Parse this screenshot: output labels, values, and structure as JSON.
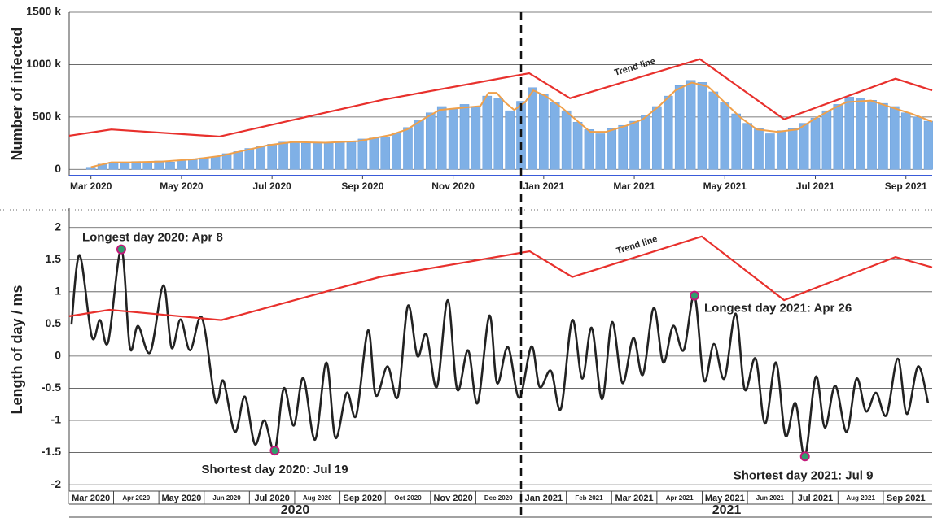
{
  "chart_data": [
    {
      "type": "bar",
      "ylabel": "Number of infected",
      "color": "#7fb0e6",
      "xlim": [
        -0.48,
        18.58
      ],
      "ylim": [
        -60000,
        1500000
      ],
      "yticks": [
        {
          "value": 0,
          "label": "0"
        },
        {
          "value": 500000,
          "label": "500 k"
        },
        {
          "value": 1000000,
          "label": "1000 k"
        },
        {
          "value": 1500000,
          "label": "1500 k"
        }
      ],
      "xticks": [
        {
          "value": 0,
          "label": "Mar 2020"
        },
        {
          "value": 2,
          "label": "May 2020"
        },
        {
          "value": 4,
          "label": "Jul 2020"
        },
        {
          "value": 6,
          "label": "Sep 2020"
        },
        {
          "value": 8,
          "label": "Nov 2020"
        },
        {
          "value": 10,
          "label": "Jan 2021"
        },
        {
          "value": 12,
          "label": "Mar 2021"
        },
        {
          "value": 14,
          "label": "May 2021"
        },
        {
          "value": 16,
          "label": "Jul 2021"
        },
        {
          "value": 18,
          "label": "Sep 2021"
        }
      ],
      "x": [
        0,
        0.25,
        0.5,
        0.75,
        1,
        1.25,
        1.5,
        1.75,
        2,
        2.25,
        2.5,
        2.75,
        3,
        3.25,
        3.5,
        3.75,
        4,
        4.25,
        4.5,
        4.75,
        5,
        5.25,
        5.5,
        5.75,
        6,
        6.25,
        6.5,
        6.75,
        7,
        7.25,
        7.5,
        7.75,
        8,
        8.25,
        8.5,
        8.75,
        9,
        9.25,
        9.5,
        9.75,
        10,
        10.25,
        10.5,
        10.75,
        11,
        11.25,
        11.5,
        11.75,
        12,
        12.25,
        12.5,
        12.75,
        13,
        13.25,
        13.5,
        13.75,
        14,
        14.25,
        14.5,
        14.75,
        15,
        15.25,
        15.5,
        15.75,
        16,
        16.25,
        16.5,
        16.75,
        17,
        17.25,
        17.5,
        17.75,
        18,
        18.25,
        18.5
      ],
      "values": [
        20000,
        50000,
        70000,
        60000,
        75000,
        65000,
        80000,
        70000,
        90000,
        100000,
        110000,
        120000,
        150000,
        170000,
        200000,
        220000,
        240000,
        260000,
        270000,
        250000,
        260000,
        250000,
        270000,
        265000,
        290000,
        300000,
        310000,
        350000,
        400000,
        470000,
        540000,
        600000,
        580000,
        620000,
        600000,
        700000,
        680000,
        560000,
        650000,
        780000,
        720000,
        640000,
        560000,
        450000,
        380000,
        340000,
        390000,
        420000,
        460000,
        520000,
        600000,
        700000,
        800000,
        850000,
        830000,
        740000,
        640000,
        530000,
        440000,
        390000,
        340000,
        370000,
        390000,
        440000,
        490000,
        560000,
        620000,
        690000,
        680000,
        660000,
        630000,
        600000,
        540000,
        500000,
        460000
      ],
      "moving_average": {
        "color": "#f0a04a",
        "x": [
          0,
          0.45,
          0.86,
          1.58,
          2.3,
          2.84,
          3.38,
          3.92,
          4.46,
          5.18,
          5.9,
          6.62,
          6.98,
          7.34,
          7.7,
          8.06,
          8.6,
          8.78,
          8.96,
          9.14,
          9.35,
          9.59,
          9.77,
          10.04,
          10.4,
          10.76,
          11.03,
          11.38,
          11.83,
          12.19,
          12.55,
          12.91,
          13.27,
          13.63,
          13.99,
          14.35,
          14.71,
          15.16,
          15.61,
          15.97,
          16.33,
          16.69,
          17.23,
          17.59,
          18.13,
          18.58
        ],
        "values": [
          22000,
          67000,
          67000,
          75000,
          97000,
          127000,
          179000,
          231000,
          261000,
          254000,
          269000,
          328000,
          381000,
          478000,
          567000,
          582000,
          604000,
          731000,
          731000,
          642000,
          567000,
          642000,
          754000,
          701000,
          590000,
          455000,
          358000,
          358000,
          418000,
          478000,
          604000,
          754000,
          828000,
          791000,
          642000,
          493000,
          381000,
          358000,
          381000,
          478000,
          567000,
          642000,
          657000,
          604000,
          530000,
          455000
        ]
      },
      "trend_line": {
        "label": "Trend line",
        "color": "#e8302c",
        "x": [
          -0.48,
          0.45,
          2.84,
          6.44,
          9.68,
          10.58,
          13.45,
          15.31,
          17.77,
          18.58
        ],
        "values": [
          321000,
          381000,
          313000,
          664000,
          918000,
          679000,
          1052000,
          478000,
          866000,
          754000
        ]
      }
    },
    {
      "type": "line",
      "ylabel": "Length of day / ms",
      "color": "#222222",
      "xlim": [
        -0.48,
        18.58
      ],
      "ylim": [
        -2.1,
        2.3
      ],
      "yticks": [
        2,
        1.5,
        1,
        0.5,
        0,
        -0.5,
        -1,
        -1.5,
        -2
      ],
      "xticks": [
        {
          "value": 0,
          "label": "Mar 2020"
        },
        {
          "value": 1,
          "label": "Apr 2020"
        },
        {
          "value": 2,
          "label": "May 2020"
        },
        {
          "value": 3,
          "label": "Jun 2020"
        },
        {
          "value": 4,
          "label": "Jul 2020"
        },
        {
          "value": 5,
          "label": "Aug 2020"
        },
        {
          "value": 6,
          "label": "Sep 2020"
        },
        {
          "value": 7,
          "label": "Oct 2020"
        },
        {
          "value": 8,
          "label": "Nov 2020"
        },
        {
          "value": 9,
          "label": "Dec 2020"
        },
        {
          "value": 10,
          "label": "Jan 2021"
        },
        {
          "value": 11,
          "label": "Feb 2021"
        },
        {
          "value": 12,
          "label": "Mar 2021"
        },
        {
          "value": 13,
          "label": "Apr 2021"
        },
        {
          "value": 14,
          "label": "May 2021"
        },
        {
          "value": 15,
          "label": "Jun 2021"
        },
        {
          "value": 16,
          "label": "Jul 2021"
        },
        {
          "value": 17,
          "label": "Aug 2021"
        },
        {
          "value": 18,
          "label": "Sep 2021"
        }
      ],
      "xgroups": [
        {
          "label": "2020",
          "from": -0.48,
          "to": 9.5
        },
        {
          "label": "2021",
          "from": 9.5,
          "to": 18.58
        }
      ],
      "x": [
        -0.43,
        -0.25,
        0.02,
        0.2,
        0.38,
        0.67,
        0.86,
        1.04,
        1.31,
        1.6,
        1.78,
        1.98,
        2.19,
        2.45,
        2.72,
        2.81,
        2.93,
        3.18,
        3.4,
        3.62,
        3.83,
        4.06,
        4.26,
        4.48,
        4.69,
        4.95,
        5.2,
        5.4,
        5.65,
        5.86,
        6.12,
        6.29,
        6.55,
        6.78,
        7.0,
        7.21,
        7.41,
        7.64,
        7.88,
        8.09,
        8.33,
        8.54,
        8.8,
        8.97,
        9.21,
        9.46,
        9.73,
        9.91,
        10.16,
        10.38,
        10.63,
        10.85,
        11.06,
        11.29,
        11.51,
        11.74,
        11.98,
        12.19,
        12.43,
        12.64,
        12.86,
        13.09,
        13.33,
        13.54,
        13.76,
        13.99,
        14.24,
        14.44,
        14.68,
        14.89,
        15.13,
        15.34,
        15.56,
        15.77,
        16.01,
        16.21,
        16.44,
        16.69,
        16.91,
        17.12,
        17.34,
        17.57,
        17.82,
        18.02,
        18.27,
        18.49
      ],
      "values": [
        0.49,
        1.57,
        0.3,
        0.56,
        0.22,
        1.66,
        0.13,
        0.47,
        0.06,
        1.1,
        0.13,
        0.57,
        0.09,
        0.6,
        -0.61,
        -0.67,
        -0.39,
        -1.18,
        -0.63,
        -1.37,
        -1.0,
        -1.47,
        -0.5,
        -1.08,
        -0.34,
        -1.3,
        -0.1,
        -1.27,
        -0.57,
        -0.92,
        0.4,
        -0.61,
        -0.16,
        -0.63,
        0.78,
        0,
        0.34,
        -0.48,
        0.87,
        -0.52,
        0.09,
        -0.73,
        0.63,
        -0.42,
        0.14,
        -0.65,
        0.15,
        -0.48,
        -0.23,
        -0.82,
        0.56,
        -0.35,
        0.44,
        -0.67,
        0.53,
        -0.42,
        0.28,
        -0.29,
        0.75,
        -0.1,
        0.47,
        0.09,
        0.94,
        -0.38,
        0.19,
        -0.35,
        0.66,
        -0.52,
        -0.04,
        -1.05,
        -0.1,
        -1.24,
        -0.73,
        -1.56,
        -0.32,
        -1.11,
        -0.46,
        -1.18,
        -0.35,
        -0.86,
        -0.57,
        -0.92,
        -0.04,
        -0.9,
        -0.16,
        -0.73
      ],
      "trend_line": {
        "label": "Trend line",
        "color": "#e8302c",
        "x": [
          -0.48,
          0.41,
          2.88,
          6.38,
          9.69,
          10.63,
          13.49,
          15.31,
          17.77,
          18.58
        ],
        "values": [
          0.62,
          0.72,
          0.56,
          1.23,
          1.63,
          1.23,
          1.86,
          0.87,
          1.54,
          1.38
        ]
      },
      "highlights": [
        {
          "label": "Longest day 2020: Apr 8",
          "x": 0.67,
          "y": 1.66
        },
        {
          "label": "Shortest day 2020: Jul 19",
          "x": 4.06,
          "y": -1.47
        },
        {
          "label": "Longest day 2021: Apr 26",
          "x": 13.33,
          "y": 0.94
        },
        {
          "label": "Shortest day 2021: Jul 9",
          "x": 15.77,
          "y": -1.56
        }
      ]
    }
  ]
}
